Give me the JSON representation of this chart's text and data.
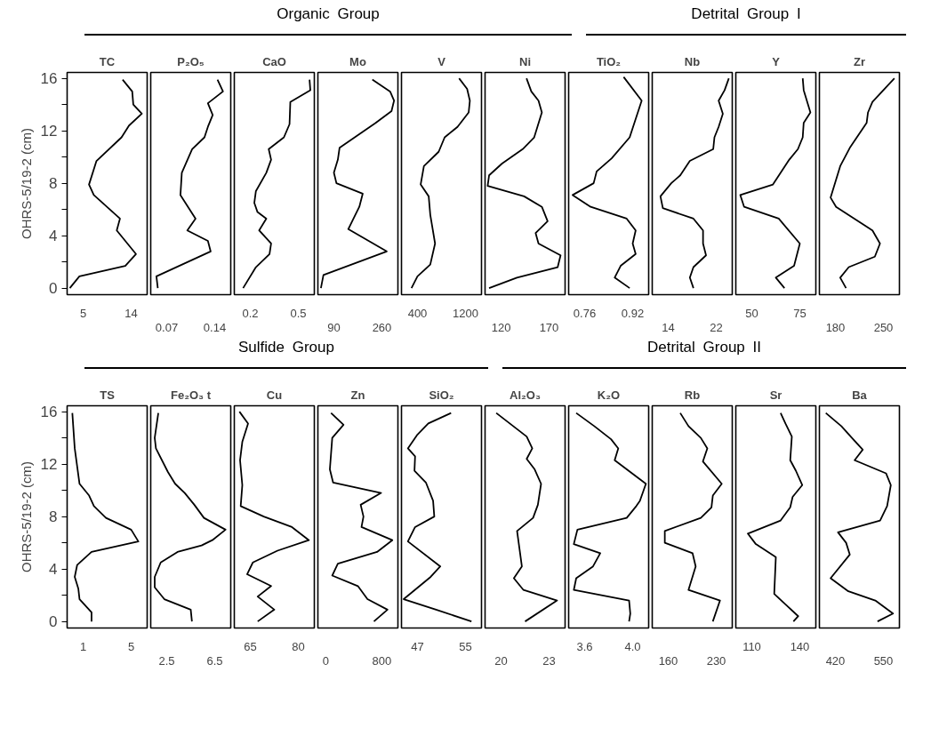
{
  "chart_data": [
    {
      "type": "line",
      "title": "TC",
      "ylabel": "OHRS-5/19-2 (cm)",
      "annotations": [
        "Organic Group"
      ],
      "color": "#000000",
      "xlim": [
        2,
        17
      ],
      "xticks": [
        5,
        14
      ],
      "ylim": [
        -0.5,
        16.45
      ],
      "yticks": [
        0,
        {
          "value": 2,
          "label": null
        },
        4,
        {
          "value": 6,
          "label": null
        },
        8,
        {
          "value": 10,
          "label": null
        },
        12,
        {
          "value": 14,
          "label": null
        },
        16
      ],
      "x": [
        12.4,
        14.2,
        14.4,
        16.0,
        13.6,
        12.2,
        7.5,
        6.1,
        7.0,
        11.9,
        11.3,
        14.9,
        12.9,
        4.3,
        2.5
      ],
      "values": [
        15.9,
        15.0,
        14.0,
        13.3,
        12.4,
        11.5,
        9.7,
        7.9,
        7.1,
        5.3,
        4.4,
        2.6,
        1.7,
        0.9,
        0.0
      ]
    },
    {
      "type": "line",
      "title": "P₂O₅",
      "tick_labels": "x",
      "color": "#000000",
      "xlim": [
        0.0467,
        0.1633
      ],
      "xticks": [
        0.07,
        0.14
      ],
      "ylim": [
        -0.5,
        16.45
      ],
      "x": [
        0.144,
        0.152,
        0.13,
        0.137,
        0.13,
        0.125,
        0.107,
        0.092,
        0.09,
        0.112,
        0.1,
        0.13,
        0.134,
        0.055,
        0.057
      ],
      "values": [
        15.9,
        15.0,
        14.1,
        13.2,
        12.3,
        11.5,
        10.6,
        8.8,
        7.1,
        5.3,
        4.4,
        3.6,
        2.8,
        0.9,
        0.0
      ]
    },
    {
      "type": "line",
      "title": "CaO",
      "tick_labels": "x",
      "color": "#000000",
      "xlim": [
        0.1,
        0.6
      ],
      "xticks": [
        0.2,
        0.5
      ],
      "ylim": [
        -0.5,
        16.45
      ],
      "x": [
        0.57,
        0.575,
        0.45,
        0.445,
        0.41,
        0.315,
        0.33,
        0.3,
        0.235,
        0.225,
        0.245,
        0.3,
        0.255,
        0.33,
        0.32,
        0.235,
        0.155
      ],
      "values": [
        15.9,
        15.1,
        14.2,
        12.5,
        11.5,
        10.6,
        9.8,
        8.8,
        7.4,
        6.5,
        5.8,
        5.3,
        4.4,
        3.4,
        2.6,
        1.6,
        0.0
      ]
    },
    {
      "type": "line",
      "title": "Mo",
      "tick_labels": "x",
      "color": "#000000",
      "xlim": [
        33.3,
        316.7
      ],
      "xticks": [
        90,
        260
      ],
      "ylim": [
        -0.5,
        16.45
      ],
      "x": [
        226,
        289,
        303,
        294,
        238,
        110,
        104,
        90,
        99,
        192,
        180,
        141,
        277,
        53,
        44
      ],
      "values": [
        15.9,
        15.0,
        14.3,
        13.5,
        12.6,
        10.7,
        9.8,
        8.8,
        8.0,
        7.2,
        6.2,
        4.5,
        2.8,
        1.0,
        0.0
      ]
    },
    {
      "type": "line",
      "title": "V",
      "tick_labels": "x",
      "color": "#000000",
      "xlim": [
        133.3,
        1466.7
      ],
      "xticks": [
        400,
        1200
      ],
      "ylim": [
        -0.5,
        16.45
      ],
      "x": [
        1093,
        1227,
        1273,
        1253,
        1067,
        853,
        753,
        507,
        453,
        587,
        613,
        693,
        613,
        400,
        300
      ],
      "values": [
        16.0,
        15.2,
        14.3,
        13.4,
        12.3,
        11.5,
        10.4,
        9.3,
        7.9,
        7.0,
        5.6,
        3.4,
        1.8,
        0.9,
        0.0
      ]
    },
    {
      "type": "line",
      "title": "Ni",
      "tick_labels": "x",
      "color": "#000000",
      "xlim": [
        103.3,
        186.7
      ],
      "xticks": [
        120,
        170
      ],
      "ylim": [
        -0.5,
        16.45
      ],
      "x": [
        146.5,
        151.5,
        159,
        162.5,
        154.5,
        142.5,
        121,
        107.5,
        106,
        144,
        162.5,
        168.5,
        156,
        159,
        182,
        179,
        136.5,
        107.5
      ],
      "values": [
        16.0,
        15.0,
        14.3,
        13.4,
        11.5,
        10.6,
        9.5,
        8.6,
        7.8,
        7.0,
        6.2,
        5.1,
        4.2,
        3.4,
        2.5,
        1.6,
        0.8,
        0.0
      ]
    },
    {
      "type": "line",
      "title": "TiO₂",
      "annotations": [
        "Detrital Group I"
      ],
      "tick_labels": "x",
      "color": "#000000",
      "xlim": [
        0.7067,
        0.9733
      ],
      "xticks": [
        0.76,
        0.92
      ],
      "ylim": [
        -0.5,
        16.45
      ],
      "x": [
        0.89,
        0.95,
        0.91,
        0.85,
        0.8,
        0.79,
        0.72,
        0.78,
        0.9,
        0.93,
        0.92,
        0.93,
        0.88,
        0.86,
        0.91
      ],
      "values": [
        16.1,
        14.3,
        11.5,
        9.9,
        8.9,
        8.0,
        7.1,
        6.2,
        5.3,
        4.4,
        3.4,
        2.6,
        1.7,
        0.8,
        0.0
      ]
    },
    {
      "type": "line",
      "title": "Nb",
      "tick_labels": "x",
      "color": "#000000",
      "xlim": [
        11.33,
        24.67
      ],
      "xticks": [
        14,
        22
      ],
      "ylim": [
        -0.5,
        16.45
      ],
      "x": [
        24.1,
        23.4,
        22.4,
        23.1,
        22.4,
        21.7,
        21.5,
        17.6,
        16.0,
        14.5,
        12.7,
        13.1,
        18.2,
        19.8,
        19.8,
        20.3,
        18.2,
        17.6,
        18.2
      ],
      "values": [
        16.0,
        15.1,
        14.3,
        13.3,
        12.3,
        11.5,
        10.6,
        9.7,
        8.6,
        8.0,
        7.0,
        6.1,
        5.3,
        4.4,
        3.4,
        2.5,
        1.6,
        0.8,
        0.0
      ]
    },
    {
      "type": "line",
      "title": "Y",
      "tick_labels": "x",
      "color": "#000000",
      "xlim": [
        41.67,
        83.33
      ],
      "xticks": [
        50,
        75
      ],
      "ylim": [
        -0.5,
        16.45
      ],
      "x": [
        76.5,
        77,
        80.5,
        77,
        76.5,
        74,
        69.5,
        61,
        44,
        46,
        64,
        75,
        72,
        62.5,
        67
      ],
      "values": [
        16.0,
        15.1,
        13.4,
        12.6,
        11.5,
        10.6,
        9.8,
        7.9,
        7.1,
        6.2,
        5.3,
        3.4,
        1.7,
        0.8,
        0.0
      ]
    },
    {
      "type": "line",
      "title": "Zr",
      "tick_labels": "x",
      "color": "#000000",
      "xlim": [
        156.67,
        273.33
      ],
      "xticks": [
        180,
        250
      ],
      "ylim": [
        -0.5,
        16.45
      ],
      "x": [
        266,
        234,
        227.5,
        225.5,
        201,
        187,
        173,
        181,
        234,
        245,
        237.5,
        199.5,
        187,
        195.5
      ],
      "values": [
        16.0,
        14.2,
        13.4,
        12.6,
        10.7,
        9.3,
        6.9,
        6.2,
        4.4,
        3.4,
        2.4,
        1.6,
        0.8,
        0.0
      ]
    },
    {
      "type": "line",
      "title": "TS",
      "ylabel": "OHRS-5/19-2 (cm)",
      "annotations": [
        "Sulfide Group"
      ],
      "color": "#000000",
      "xlim": [
        -0.333,
        6.333
      ],
      "xticks": [
        1,
        5
      ],
      "ylim": [
        -0.5,
        16.45
      ],
      "yticks": [
        0,
        {
          "value": 2,
          "label": null
        },
        4,
        {
          "value": 6,
          "label": null
        },
        8,
        {
          "value": 10,
          "label": null
        },
        12,
        {
          "value": 14,
          "label": null
        },
        16
      ],
      "x": [
        0.1,
        0.3,
        0.7,
        1.5,
        1.9,
        2.9,
        5.0,
        5.6,
        1.7,
        0.5,
        0.3,
        0.6,
        0.7,
        1.7,
        1.7
      ],
      "values": [
        15.9,
        13.2,
        10.5,
        9.6,
        8.8,
        7.9,
        7.0,
        6.1,
        5.3,
        4.3,
        3.4,
        2.5,
        1.7,
        0.7,
        0.0
      ]
    },
    {
      "type": "line",
      "title": "Fe₂O₃ t",
      "tick_labels": "x",
      "color": "#000000",
      "xlim": [
        1.167,
        7.833
      ],
      "xticks": [
        2.5,
        6.5
      ],
      "ylim": [
        -0.5,
        16.45
      ],
      "x": [
        1.8,
        1.5,
        1.6,
        2.6,
        3.2,
        4.0,
        4.8,
        5.6,
        7.4,
        6.3,
        5.4,
        3.4,
        2.0,
        1.5,
        1.5,
        2.3,
        4.5,
        4.6
      ],
      "values": [
        15.9,
        14.0,
        13.2,
        11.4,
        10.5,
        9.8,
        8.9,
        7.9,
        7.0,
        6.2,
        5.8,
        5.3,
        4.5,
        3.4,
        2.6,
        1.7,
        0.9,
        0.0
      ]
    },
    {
      "type": "line",
      "title": "Cu",
      "tick_labels": "x",
      "color": "#000000",
      "xlim": [
        60,
        85
      ],
      "xticks": [
        65,
        80
      ],
      "ylim": [
        -0.5,
        16.45
      ],
      "x": [
        61.6,
        64.3,
        62.5,
        61.8,
        62.5,
        62,
        69.2,
        78,
        83.3,
        73.5,
        65.8,
        64,
        71.5,
        67.3,
        72.5,
        67.3
      ],
      "values": [
        16.0,
        15.1,
        13.7,
        12.3,
        10.4,
        8.8,
        8.0,
        7.2,
        6.2,
        5.4,
        4.5,
        3.6,
        2.7,
        1.9,
        0.9,
        0.0
      ]
    },
    {
      "type": "line",
      "title": "Zn",
      "tick_labels": "x",
      "color": "#000000",
      "xlim": [
        -114,
        1029
      ],
      "xticks": [
        0,
        800
      ],
      "ylim": [
        -0.5,
        16.45
      ],
      "x": [
        74,
        252,
        91,
        57,
        103,
        789,
        497,
        537,
        509,
        949,
        731,
        171,
        91,
        457,
        594,
        880,
        686
      ],
      "values": [
        15.9,
        15.0,
        14.0,
        11.6,
        10.6,
        9.8,
        8.9,
        8.0,
        7.2,
        6.2,
        5.3,
        4.4,
        3.5,
        2.7,
        1.7,
        0.9,
        0.0
      ]
    },
    {
      "type": "line",
      "title": "SiO₂",
      "tick_labels": "x",
      "color": "#000000",
      "xlim": [
        44.33,
        57.67
      ],
      "xticks": [
        47,
        55
      ],
      "ylim": [
        -0.5,
        16.45
      ],
      "x": [
        52.6,
        48.8,
        46.9,
        45.4,
        46.6,
        46.5,
        48.4,
        49.6,
        49.8,
        46.6,
        45.4,
        50.8,
        49.2,
        44.7,
        50.1,
        56.0
      ],
      "values": [
        15.9,
        15.1,
        14.2,
        13.2,
        12.6,
        11.5,
        10.6,
        9.2,
        8.0,
        7.2,
        6.1,
        4.2,
        3.4,
        1.7,
        0.9,
        0.0
      ]
    },
    {
      "type": "line",
      "title": "Al₂O₃",
      "annotations": [
        "Detrital Group II"
      ],
      "tick_labels": "x",
      "color": "#000000",
      "xlim": [
        19,
        24
      ],
      "xticks": [
        20,
        23
      ],
      "ylim": [
        -0.5,
        16.45
      ],
      "x": [
        19.7,
        21.6,
        21.95,
        21.6,
        22.1,
        22.5,
        22.3,
        22.0,
        21.0,
        21.3,
        20.8,
        21.4,
        23.5,
        21.5
      ],
      "values": [
        15.9,
        14.1,
        13.2,
        12.4,
        11.6,
        10.5,
        8.9,
        7.9,
        6.9,
        4.2,
        3.3,
        2.4,
        1.6,
        0.0
      ]
    },
    {
      "type": "line",
      "title": "K₂O",
      "tick_labels": "x",
      "color": "#000000",
      "xlim": [
        3.467,
        4.133
      ],
      "xticks": [
        3.6,
        {
          "value": 4,
          "label": "4.0"
        }
      ],
      "ylim": [
        -0.5,
        16.45
      ],
      "x": [
        3.53,
        3.68,
        3.82,
        3.88,
        3.85,
        4.11,
        4.06,
        4.03,
        3.95,
        3.54,
        3.51,
        3.73,
        3.67,
        3.53,
        3.51,
        3.97,
        3.98,
        3.97
      ],
      "values": [
        15.9,
        14.9,
        13.9,
        13.2,
        12.3,
        10.5,
        9.2,
        8.8,
        7.9,
        7.0,
        5.9,
        5.2,
        4.2,
        3.3,
        2.4,
        1.6,
        0.6,
        0.0
      ]
    },
    {
      "type": "line",
      "title": "Rb",
      "tick_labels": "x",
      "color": "#000000",
      "xlim": [
        136.67,
        253.33
      ],
      "xticks": [
        160,
        230
      ],
      "ylim": [
        -0.5,
        16.45
      ],
      "x": [
        177.5,
        189.5,
        207.5,
        217,
        210.5,
        238,
        225,
        223,
        207.5,
        155,
        155,
        195.5,
        200,
        189.5,
        235.5,
        225
      ],
      "values": [
        15.9,
        14.9,
        14.0,
        13.2,
        12.2,
        10.5,
        9.6,
        8.7,
        7.9,
        6.9,
        6.0,
        5.2,
        4.2,
        2.4,
        1.6,
        0.0
      ]
    },
    {
      "type": "line",
      "title": "Sr",
      "tick_labels": "x",
      "color": "#000000",
      "xlim": [
        100,
        150
      ],
      "xticks": [
        110,
        140
      ],
      "ylim": [
        -0.5,
        16.45
      ],
      "x": [
        128,
        131,
        135,
        134,
        137.5,
        141.5,
        135.5,
        134,
        128,
        107.5,
        112.5,
        125,
        124,
        131,
        139,
        136
      ],
      "values": [
        15.9,
        15.1,
        14.1,
        12.3,
        11.5,
        10.4,
        9.5,
        8.7,
        7.7,
        6.7,
        5.9,
        4.9,
        2.1,
        1.3,
        0.4,
        0.0
      ]
    },
    {
      "type": "line",
      "title": "Ba",
      "tick_labels": "x",
      "color": "#000000",
      "xlim": [
        376.67,
        593.33
      ],
      "xticks": [
        420,
        550
      ],
      "ylim": [
        -0.5,
        16.45
      ],
      "x": [
        394,
        436,
        468,
        494,
        472,
        557,
        570,
        560,
        541,
        427,
        449,
        459,
        407,
        455,
        528,
        576,
        534
      ],
      "values": [
        15.9,
        14.9,
        13.9,
        13.1,
        12.3,
        11.3,
        10.4,
        8.8,
        7.7,
        6.8,
        6.0,
        5.1,
        3.3,
        2.3,
        1.6,
        0.6,
        0.0
      ]
    }
  ]
}
